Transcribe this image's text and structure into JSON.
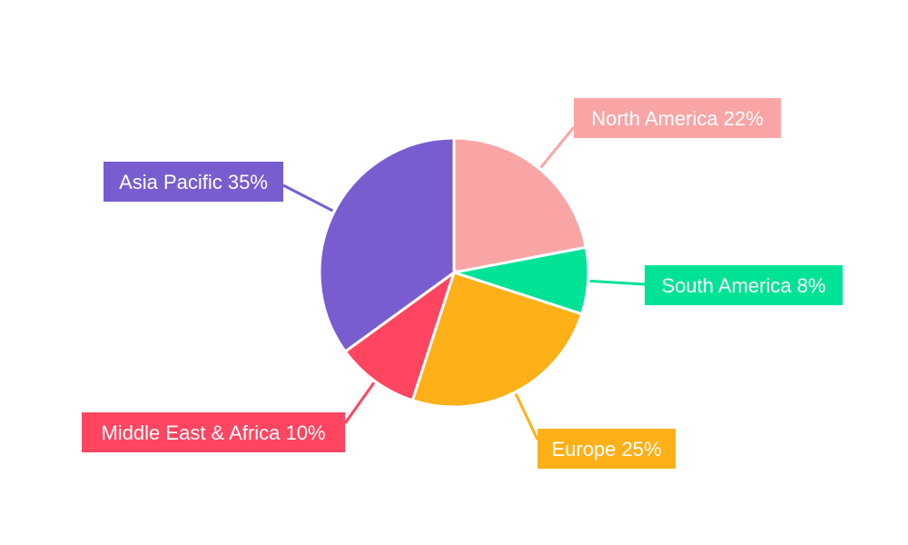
{
  "chart_data": {
    "type": "pie",
    "title": "",
    "start_angle": "12 o'clock, clockwise",
    "slices": [
      {
        "label": "North America",
        "value": 22,
        "text": "North America 22%",
        "color": "#F9A5A6"
      },
      {
        "label": "South America",
        "value": 8,
        "text": "South America 8%",
        "color": "#00E396"
      },
      {
        "label": "Europe",
        "value": 25,
        "text": "Europe 25%",
        "color": "#FEB019"
      },
      {
        "label": "Middle East & Africa",
        "value": 10,
        "text": "Middle East & Africa 10%",
        "color": "#FF4560"
      },
      {
        "label": "Asia Pacific",
        "value": 35,
        "text": "Asia Pacific 35%",
        "color": "#775DD0"
      }
    ],
    "legend": "none",
    "labels": "outside with leader lines"
  }
}
